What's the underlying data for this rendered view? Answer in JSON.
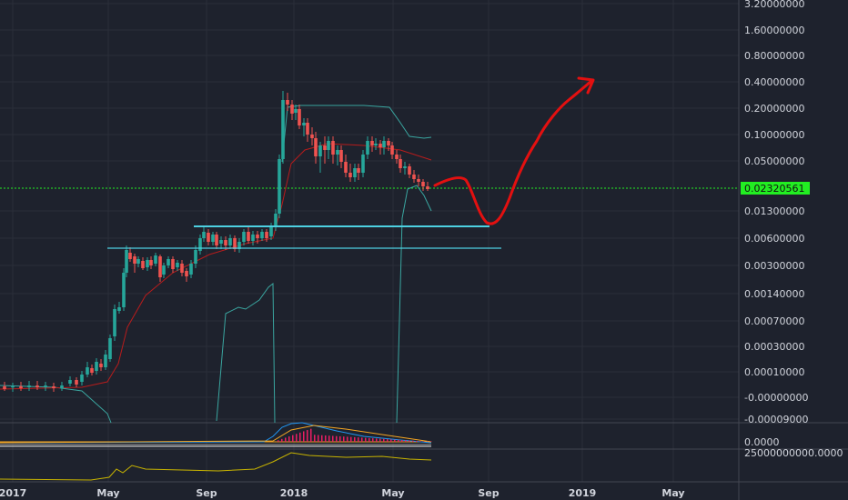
{
  "chart_data": [
    {
      "type": "candlestick",
      "scale": "log",
      "y_ticks": [
        "3.20000000",
        "1.60000000",
        "0.80000000",
        "0.40000000",
        "0.20000000",
        "0.10000000",
        "0.05000000",
        "0.02320561",
        "0.01300000",
        "0.00600000",
        "0.00300000",
        "0.00140000",
        "0.00070000",
        "0.00030000",
        "0.00010000",
        "-0.00000000",
        "-0.00009000"
      ],
      "x_ticks": [
        "2017",
        "May",
        "Sep",
        "2018",
        "May",
        "Sep",
        "2019",
        "May"
      ],
      "last_price": "0.02320561",
      "last_price_color": "#22ee22",
      "up_color": "#26a69a",
      "down_color": "#ef5350",
      "candles_approx": [
        {
          "date": "2017-01",
          "close": 5e-05
        },
        {
          "date": "2017-04",
          "close": 0.0001
        },
        {
          "date": "2017-05",
          "close": 0.006
        },
        {
          "date": "2017-06",
          "close": 0.004
        },
        {
          "date": "2017-08",
          "close": 0.004
        },
        {
          "date": "2017-09",
          "close": 0.007
        },
        {
          "date": "2017-10",
          "close": 0.006
        },
        {
          "date": "2017-11",
          "close": 0.008
        },
        {
          "date": "2017-12",
          "close": 0.06
        },
        {
          "date": "2017-12",
          "close": 0.25
        },
        {
          "date": "2018-02",
          "close": 0.09
        },
        {
          "date": "2018-03",
          "close": 0.03
        },
        {
          "date": "2018-04",
          "close": 0.09
        },
        {
          "date": "2018-06",
          "close": 0.025
        }
      ],
      "support_lines": [
        0.0085,
        0.0052
      ],
      "projection_color": "#e31010",
      "grid": true
    },
    {
      "type": "line",
      "y_ticks": [
        "0.0000"
      ],
      "series_colors": [
        "#f5a623",
        "#2196f3",
        "#e91e63"
      ]
    },
    {
      "type": "line",
      "y_ticks": [
        "25000000000.0000"
      ],
      "series_colors": [
        "#c8b400"
      ]
    }
  ]
}
